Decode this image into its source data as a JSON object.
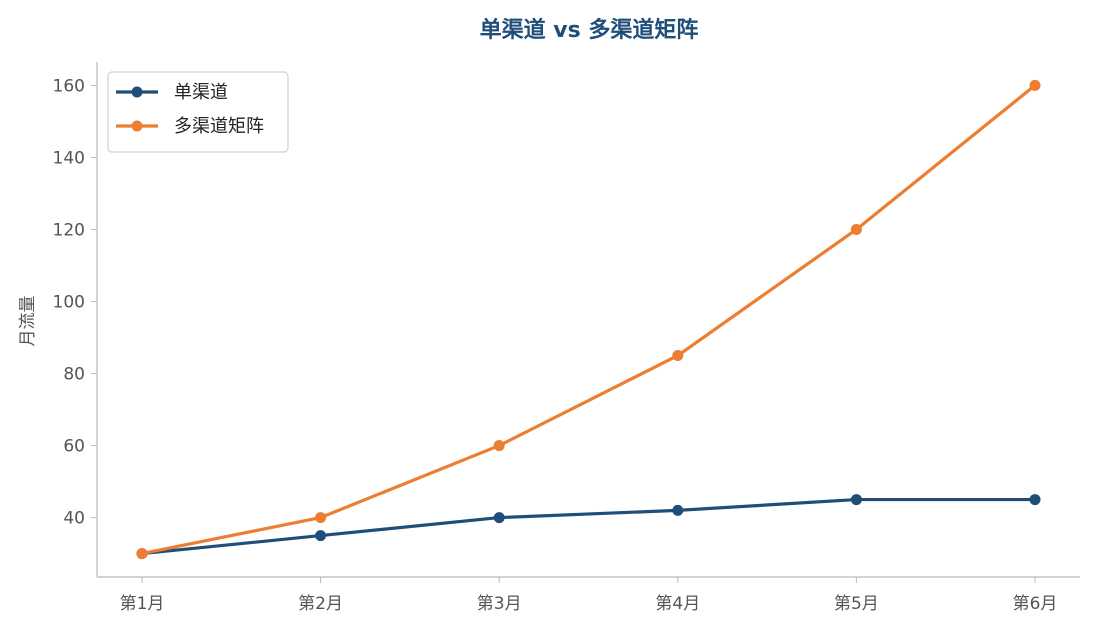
{
  "chart_data": {
    "type": "line",
    "title": "单渠道 vs 多渠道矩阵",
    "xlabel": "",
    "ylabel": "月流量",
    "categories": [
      "第1月",
      "第2月",
      "第3月",
      "第4月",
      "第5月",
      "第6月"
    ],
    "series": [
      {
        "name": "单渠道",
        "color": "#1F4E79",
        "values": [
          30,
          35,
          40,
          42,
          45,
          45
        ]
      },
      {
        "name": "多渠道矩阵",
        "color": "#ED7D31",
        "values": [
          30,
          40,
          60,
          85,
          120,
          160
        ]
      }
    ],
    "ylim": [
      23.5,
      166.5
    ],
    "yticks": [
      40,
      60,
      80,
      100,
      120,
      140,
      160
    ],
    "grid": false,
    "legend_position": "top-left",
    "title_color": "#1F4E79",
    "axis_color": "#BBBBBB"
  }
}
